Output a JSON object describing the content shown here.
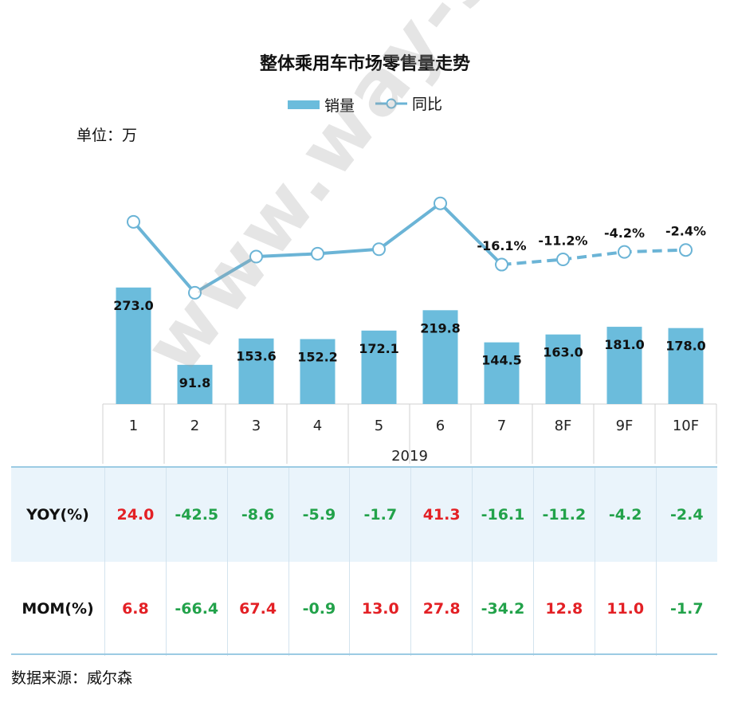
{
  "chart_data": {
    "type": "bar",
    "title": "整体乘用车市场零售量走势",
    "unit_label": "单位：万",
    "year_label": "2019",
    "categories": [
      "1",
      "2",
      "3",
      "4",
      "5",
      "6",
      "7",
      "8F",
      "9F",
      "10F"
    ],
    "series": [
      {
        "name": "销量",
        "type": "bar",
        "values": [
          273.0,
          91.8,
          153.6,
          152.2,
          172.1,
          219.8,
          144.5,
          163.0,
          181.0,
          178.0
        ],
        "labels": [
          "273.0",
          "91.8",
          "153.6",
          "152.2",
          "172.1",
          "219.8",
          "144.5",
          "163.0",
          "181.0",
          "178.0"
        ]
      },
      {
        "name": "同比",
        "type": "line",
        "values": [
          24.0,
          -42.5,
          -8.6,
          -5.9,
          -1.7,
          41.3,
          -16.1,
          -11.2,
          -4.2,
          -2.4
        ],
        "labels": [
          "",
          "",
          "",
          "",
          "",
          "",
          "-16.1%",
          "-11.2%",
          "-4.2%",
          "-2.4%"
        ],
        "forecast_from_index": 6
      }
    ],
    "colors": {
      "bar": "#6bbcdc",
      "line": "#6bb4d6",
      "positive": "#e32025",
      "negative": "#22a24a"
    },
    "legend_position": "top-center",
    "grid": false
  },
  "table": {
    "rows": [
      {
        "label": "YOY(%)",
        "values": [
          "24.0",
          "-42.5",
          "-8.6",
          "-5.9",
          "-1.7",
          "41.3",
          "-16.1",
          "-11.2",
          "-4.2",
          "-2.4"
        ]
      },
      {
        "label": "MOM(%)",
        "values": [
          "6.8",
          "-66.4",
          "67.4",
          "-0.9",
          "13.0",
          "27.8",
          "-34.2",
          "12.8",
          "11.0",
          "-1.7"
        ]
      }
    ]
  },
  "source_note": "数据来源：威尔森",
  "watermark": "www.way-s.cn"
}
